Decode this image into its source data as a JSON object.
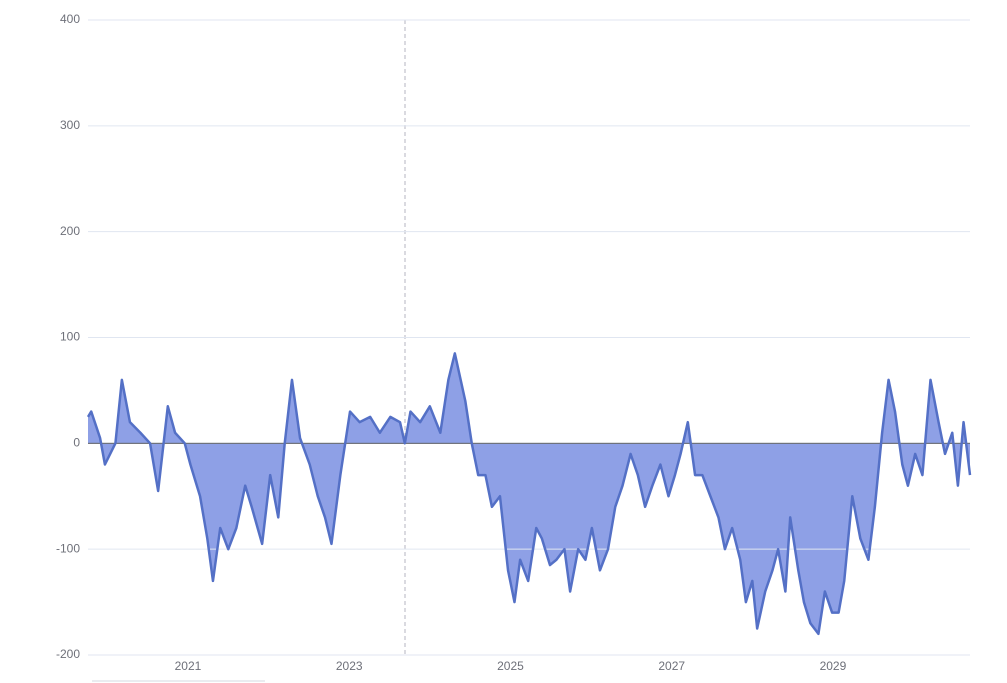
{
  "chart_data": {
    "type": "area",
    "x": [
      2019.76,
      2019.8,
      2019.91,
      2019.97,
      2020.1,
      2020.18,
      2020.28,
      2020.41,
      2020.53,
      2020.63,
      2020.75,
      2020.84,
      2020.96,
      2021.03,
      2021.15,
      2021.24,
      2021.31,
      2021.4,
      2021.5,
      2021.6,
      2021.71,
      2021.79,
      2021.92,
      2022.02,
      2022.12,
      2022.2,
      2022.29,
      2022.39,
      2022.51,
      2022.61,
      2022.7,
      2022.78,
      2022.89,
      2023.01,
      2023.13,
      2023.26,
      2023.38,
      2023.51,
      2023.63,
      2023.69,
      2023.76,
      2023.88,
      2024.0,
      2024.13,
      2024.23,
      2024.31,
      2024.44,
      2024.52,
      2024.6,
      2024.69,
      2024.77,
      2024.87,
      2024.97,
      2025.05,
      2025.12,
      2025.22,
      2025.32,
      2025.39,
      2025.49,
      2025.57,
      2025.67,
      2025.74,
      2025.84,
      2025.93,
      2026.01,
      2026.11,
      2026.21,
      2026.3,
      2026.39,
      2026.49,
      2026.58,
      2026.67,
      2026.76,
      2026.86,
      2026.96,
      2027.04,
      2027.11,
      2027.2,
      2027.29,
      2027.38,
      2027.48,
      2027.58,
      2027.66,
      2027.75,
      2027.85,
      2027.92,
      2028.0,
      2028.06,
      2028.16,
      2028.25,
      2028.32,
      2028.41,
      2028.47,
      2028.57,
      2028.64,
      2028.72,
      2028.82,
      2028.9,
      2028.99,
      2029.07,
      2029.14,
      2029.24,
      2029.34,
      2029.44,
      2029.52,
      2029.61,
      2029.69,
      2029.77,
      2029.86,
      2029.93,
      2030.02,
      2030.11,
      2030.21,
      2030.31,
      2030.39,
      2030.48,
      2030.55,
      2030.62,
      2030.7
    ],
    "values": [
      25,
      30,
      5,
      -20,
      0,
      60,
      20,
      10,
      0,
      -45,
      35,
      10,
      0,
      -20,
      -50,
      -90,
      -130,
      -80,
      -100,
      -80,
      -40,
      -60,
      -95,
      -30,
      -70,
      0,
      60,
      5,
      -20,
      -50,
      -70,
      -95,
      -30,
      30,
      20,
      25,
      10,
      25,
      20,
      0,
      30,
      20,
      35,
      10,
      60,
      85,
      40,
      0,
      -30,
      -30,
      -60,
      -50,
      -120,
      -150,
      -110,
      -130,
      -80,
      -90,
      -115,
      -110,
      -100,
      -140,
      -100,
      -110,
      -80,
      -120,
      -100,
      -60,
      -40,
      -10,
      -30,
      -60,
      -40,
      -20,
      -50,
      -30,
      -10,
      20,
      -30,
      -30,
      -50,
      -70,
      -100,
      -80,
      -110,
      -150,
      -130,
      -175,
      -140,
      -120,
      -100,
      -140,
      -70,
      -120,
      -150,
      -170,
      -180,
      -140,
      -160,
      -160,
      -130,
      -50,
      -90,
      -110,
      -60,
      10,
      60,
      30,
      -20,
      -40,
      -10,
      -30,
      60,
      20,
      -10,
      10,
      -40,
      20,
      -30
    ],
    "color": "#5470c6",
    "area_color": "#8ea0e6",
    "xlim": [
      2019.76,
      2030.7
    ],
    "xticks": [
      2021,
      2023,
      2025,
      2027,
      2029
    ],
    "ylim": [
      -200,
      400
    ],
    "yticks": [
      -200,
      -100,
      0,
      100,
      200,
      300,
      400
    ],
    "grid": true
  }
}
